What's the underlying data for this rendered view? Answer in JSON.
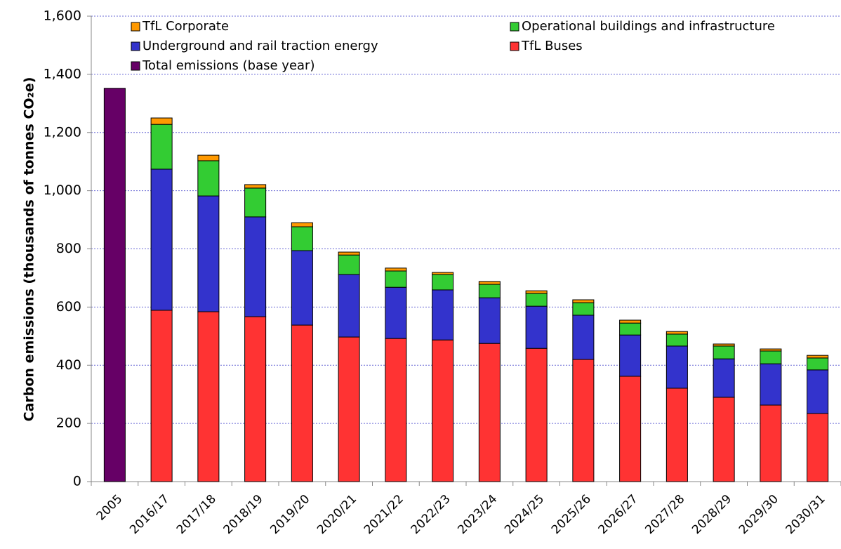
{
  "chart_data": {
    "type": "stacked_bar",
    "y_label": "Carbon emissions (thousands of tonnes CO₂e)",
    "categories": [
      "2005",
      "2016/17",
      "2017/18",
      "2018/19",
      "2019/20",
      "2020/21",
      "2021/22",
      "2022/23",
      "2023/24",
      "2024/25",
      "2025/26",
      "2026/27",
      "2027/28",
      "2028/29",
      "2029/30",
      "2030/31"
    ],
    "series": [
      {
        "name": "TfL Buses",
        "color": "#ff3333",
        "values": [
          null,
          589,
          584,
          567,
          538,
          497,
          492,
          487,
          475,
          458,
          420,
          362,
          321,
          290,
          263,
          234
        ]
      },
      {
        "name": "Underground and rail traction energy",
        "color": "#3333cc",
        "values": [
          null,
          485,
          398,
          343,
          256,
          215,
          176,
          172,
          157,
          145,
          152,
          142,
          145,
          132,
          142,
          150
        ]
      },
      {
        "name": "Operational buildings and infrastructure",
        "color": "#33cc33",
        "values": [
          null,
          154,
          121,
          99,
          82,
          67,
          56,
          53,
          46,
          44,
          43,
          41,
          41,
          44,
          44,
          41
        ]
      },
      {
        "name": "TfL Corporate",
        "color": "#ff9900",
        "values": [
          null,
          22,
          19,
          12,
          14,
          10,
          10,
          7,
          10,
          9,
          10,
          10,
          9,
          7,
          7,
          9
        ]
      },
      {
        "name": "Total emissions (base year)",
        "color": "#660066",
        "values": [
          1352,
          null,
          null,
          null,
          null,
          null,
          null,
          null,
          null,
          null,
          null,
          null,
          null,
          null,
          null,
          null
        ]
      }
    ],
    "ylim": [
      0,
      1600
    ],
    "yticks": [
      0,
      200,
      400,
      600,
      800,
      {
        "value": 1000,
        "label": "1,000"
      },
      {
        "value": 1200,
        "label": "1,200"
      },
      {
        "value": 1400,
        "label": "1,400"
      },
      {
        "value": 1600,
        "label": "1,600"
      }
    ],
    "grid": true
  }
}
